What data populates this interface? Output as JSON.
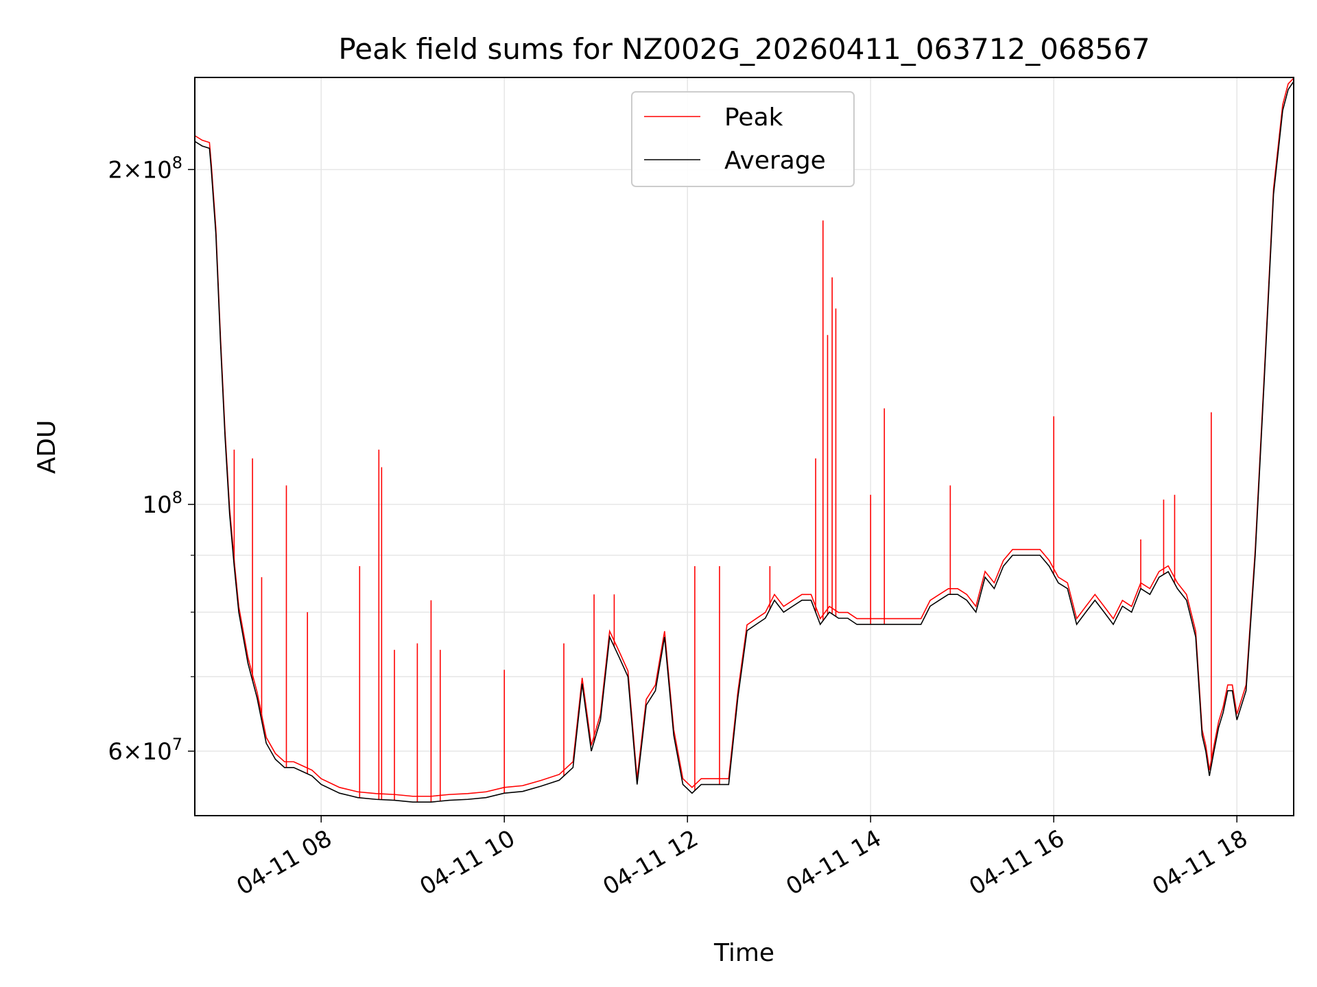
{
  "chart_data": {
    "type": "line",
    "title": "Peak field sums for NZ002G_20260411_063712_068567",
    "xlabel": "Time",
    "ylabel": "ADU",
    "yscale": "log",
    "xlim_hours": [
      6.62,
      18.62
    ],
    "ylim": [
      52500000,
      242000000
    ],
    "grid": true,
    "legend": {
      "placement": "upper center",
      "entries": [
        "Peak",
        "Average"
      ]
    },
    "colors": {
      "peak": "#ff0000",
      "average": "#000000",
      "grid": "#e6e6e6"
    },
    "x_ticks": [
      {
        "hour": 8,
        "label": "04-11 08"
      },
      {
        "hour": 10,
        "label": "04-11 10"
      },
      {
        "hour": 12,
        "label": "04-11 12"
      },
      {
        "hour": 14,
        "label": "04-11 14"
      },
      {
        "hour": 16,
        "label": "04-11 16"
      },
      {
        "hour": 18,
        "label": "04-11 18"
      }
    ],
    "y_major_ticks": [
      {
        "value": 60000000,
        "base": "6",
        "exp": "7"
      },
      {
        "value": 100000000,
        "base": "",
        "exp": "8"
      },
      {
        "value": 200000000,
        "base": "2",
        "exp": "8"
      }
    ],
    "y_minor_ticks": [
      70000000,
      80000000,
      90000000
    ],
    "series": [
      {
        "name": "Average",
        "x": [
          6.62,
          6.7,
          6.78,
          6.8,
          6.85,
          6.9,
          6.95,
          7.0,
          7.05,
          7.1,
          7.2,
          7.3,
          7.4,
          7.5,
          7.6,
          7.7,
          7.8,
          7.9,
          8.0,
          8.2,
          8.4,
          8.6,
          8.8,
          9.0,
          9.2,
          9.4,
          9.6,
          9.8,
          10.0,
          10.2,
          10.4,
          10.6,
          10.75,
          10.85,
          10.95,
          11.05,
          11.15,
          11.25,
          11.35,
          11.45,
          11.55,
          11.65,
          11.75,
          11.85,
          11.95,
          12.05,
          12.15,
          12.25,
          12.35,
          12.45,
          12.55,
          12.65,
          12.75,
          12.85,
          12.95,
          13.05,
          13.15,
          13.25,
          13.35,
          13.45,
          13.55,
          13.65,
          13.75,
          13.85,
          13.95,
          14.05,
          14.15,
          14.25,
          14.35,
          14.45,
          14.55,
          14.65,
          14.75,
          14.85,
          14.95,
          15.05,
          15.15,
          15.25,
          15.35,
          15.45,
          15.55,
          15.65,
          15.75,
          15.85,
          15.95,
          16.05,
          16.15,
          16.25,
          16.35,
          16.45,
          16.55,
          16.65,
          16.75,
          16.85,
          16.95,
          17.05,
          17.15,
          17.25,
          17.35,
          17.45,
          17.55,
          17.62,
          17.66,
          17.7,
          17.75,
          17.8,
          17.85,
          17.9,
          17.95,
          18.0,
          18.1,
          18.2,
          18.3,
          18.4,
          18.5,
          18.56,
          18.62
        ],
        "values": [
          212,
          210,
          209,
          200,
          175,
          140,
          115,
          98,
          88,
          80,
          72,
          67,
          61,
          59,
          58,
          58,
          57.5,
          57,
          56,
          55,
          54.5,
          54.3,
          54.2,
          54,
          54,
          54.2,
          54.3,
          54.5,
          55,
          55.2,
          55.8,
          56.5,
          58,
          69,
          60,
          64,
          76,
          73,
          70,
          56,
          66,
          68,
          76,
          62,
          56,
          55,
          56,
          56,
          56,
          56,
          67,
          77,
          78,
          79,
          82,
          80,
          81,
          82,
          82,
          78,
          80,
          79,
          79,
          78,
          78,
          78,
          78,
          78,
          78,
          78,
          78,
          81,
          82,
          83,
          83,
          82,
          80,
          86,
          84,
          88,
          90,
          90,
          90,
          90,
          88,
          85,
          84,
          78,
          80,
          82,
          80,
          78,
          81,
          80,
          84,
          83,
          86,
          87,
          84,
          82,
          76,
          62,
          60,
          57,
          60,
          63,
          65,
          68,
          68,
          64,
          68,
          90,
          130,
          190,
          226,
          236,
          240
        ]
      },
      {
        "name": "Peak",
        "x": [
          7.05,
          7.25,
          7.35,
          7.62,
          7.85,
          8.42,
          8.63,
          8.66,
          8.8,
          9.05,
          9.2,
          9.3,
          10.0,
          10.65,
          10.98,
          11.2,
          12.08,
          12.35,
          12.9,
          13.4,
          13.48,
          13.53,
          13.58,
          13.62,
          14.0,
          14.15,
          14.87,
          16.0,
          16.95,
          17.2,
          17.32,
          17.72
        ],
        "values": [
          112,
          110,
          86,
          104,
          80,
          88,
          112,
          108,
          74,
          75,
          82,
          74,
          71,
          75,
          83,
          83,
          88,
          88,
          88,
          110,
          180,
          142,
          160,
          150,
          102,
          122,
          104,
          120,
          93,
          101,
          102,
          121
        ]
      }
    ]
  }
}
